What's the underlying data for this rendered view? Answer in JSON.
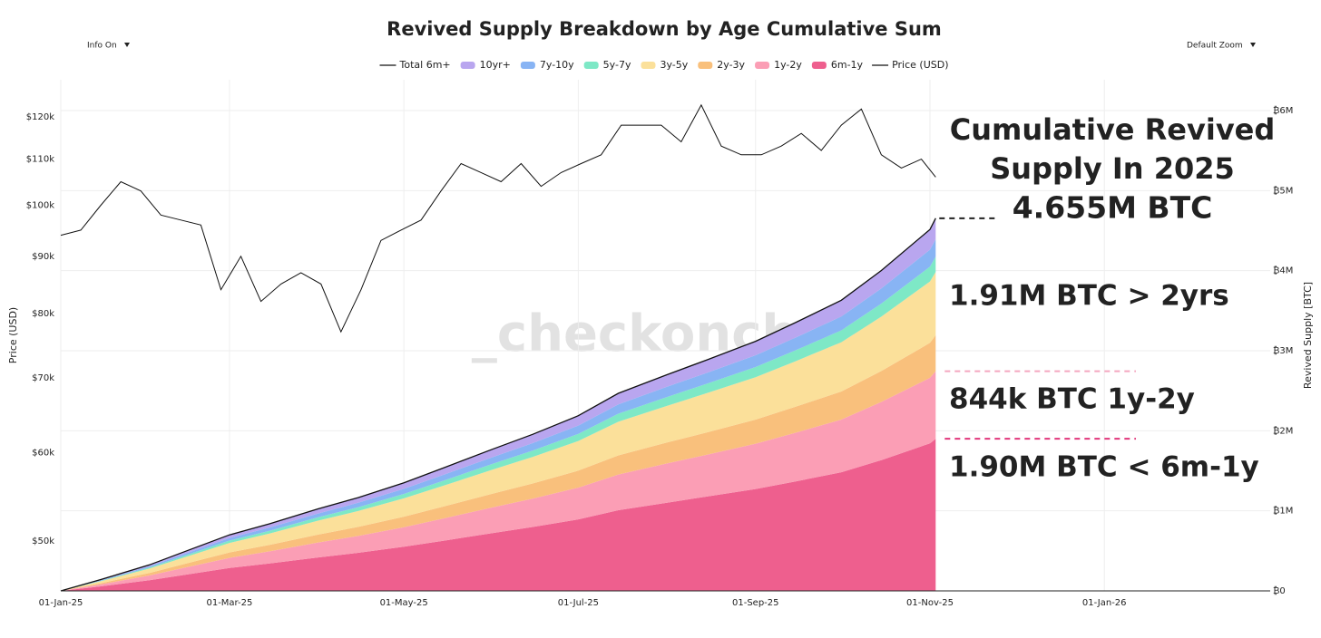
{
  "chart_data": {
    "type": "area",
    "title": "Revived Supply Breakdown by Age Cumulative Sum",
    "controls": {
      "info": "Info On",
      "zoom": "Default Zoom"
    },
    "watermark": "_checkonchain",
    "ylabel": "Price (USD)",
    "y2label": "Revived Supply [BTC]",
    "stacked": true,
    "ylog": true,
    "grid": true,
    "legend": "top",
    "xlim": [
      "2025-01-01",
      "2026-02-28"
    ],
    "xticks": [
      {
        "value": "2025-01-01",
        "label": "01-Jan-25"
      },
      {
        "value": "2025-03-01",
        "label": "01-Mar-25"
      },
      {
        "value": "2025-05-01",
        "label": "01-May-25"
      },
      {
        "value": "2025-07-01",
        "label": "01-Jul-25"
      },
      {
        "value": "2025-09-01",
        "label": "01-Sep-25"
      },
      {
        "value": "2025-11-01",
        "label": "01-Nov-25"
      },
      {
        "value": "2026-01-01",
        "label": "01-Jan-26"
      }
    ],
    "ylim": [
      45100,
      129600
    ],
    "yticks": [
      {
        "value": 50000,
        "label": "$50k"
      },
      {
        "value": 60000,
        "label": "$60k"
      },
      {
        "value": 70000,
        "label": "$70k"
      },
      {
        "value": 80000,
        "label": "$80k"
      },
      {
        "value": 90000,
        "label": "$90k"
      },
      {
        "value": 100000,
        "label": "$100k"
      },
      {
        "value": 110000,
        "label": "$110k"
      },
      {
        "value": 120000,
        "label": "$120k"
      }
    ],
    "y2lim": [
      0,
      6385000
    ],
    "y2ticks": [
      {
        "value": 0,
        "label": "₿0"
      },
      {
        "value": 1000000,
        "label": "₿1M"
      },
      {
        "value": 2000000,
        "label": "₿2M"
      },
      {
        "value": 3000000,
        "label": "₿3M"
      },
      {
        "value": 4000000,
        "label": "₿4M"
      },
      {
        "value": 5000000,
        "label": "₿5M"
      },
      {
        "value": 6000000,
        "label": "₿6M"
      }
    ],
    "x": [
      "2025-01-01",
      "2025-01-15",
      "2025-02-01",
      "2025-02-15",
      "2025-03-01",
      "2025-03-15",
      "2025-04-01",
      "2025-04-15",
      "2025-05-01",
      "2025-05-15",
      "2025-06-01",
      "2025-06-15",
      "2025-07-01",
      "2025-07-15",
      "2025-08-01",
      "2025-08-15",
      "2025-09-01",
      "2025-09-15",
      "2025-10-01",
      "2025-10-15",
      "2025-11-01",
      "2025-11-03"
    ],
    "series": [
      {
        "name": "Total 6m+",
        "type": "line",
        "axis": "y2",
        "color": "#111111",
        "values": [
          0,
          141000,
          325000,
          513000,
          700000,
          838000,
          1024000,
          1165000,
          1351000,
          1538000,
          1769000,
          1955000,
          2188000,
          2468000,
          2700000,
          2886000,
          3118000,
          3352000,
          3631000,
          4002000,
          4515000,
          4655000
        ]
      },
      {
        "name": "10yr+",
        "type": "area",
        "axis": "y2",
        "color": "#b9a6ef",
        "values": [
          0,
          8000,
          18000,
          29000,
          39000,
          47000,
          57000,
          65000,
          76000,
          86000,
          99000,
          110000,
          123000,
          138000,
          151000,
          162000,
          175000,
          188000,
          204000,
          224000,
          253000,
          261000
        ]
      },
      {
        "name": "7y-10y",
        "type": "area",
        "axis": "y2",
        "color": "#88b4f4",
        "values": [
          0,
          7000,
          15000,
          24000,
          33000,
          40000,
          48000,
          55000,
          64000,
          73000,
          84000,
          92000,
          103000,
          117000,
          128000,
          136000,
          147000,
          158000,
          172000,
          189000,
          213000,
          220000
        ]
      },
      {
        "name": "5y-7y",
        "type": "area",
        "axis": "y2",
        "color": "#7ee8c6",
        "values": [
          0,
          6000,
          13000,
          21000,
          29000,
          34000,
          42000,
          48000,
          55000,
          63000,
          72000,
          80000,
          89000,
          101000,
          110000,
          118000,
          127000,
          137000,
          148000,
          163000,
          184000,
          190000
        ]
      },
      {
        "name": "3y-5y",
        "type": "area",
        "axis": "y2",
        "color": "#fbe09a",
        "values": [
          0,
          24000,
          55000,
          87000,
          119000,
          142000,
          174000,
          198000,
          229000,
          261000,
          300000,
          332000,
          371000,
          419000,
          458000,
          490000,
          529000,
          569000,
          616000,
          679000,
          766000,
          790000
        ]
      },
      {
        "name": "2y-3y",
        "type": "area",
        "axis": "y2",
        "color": "#f9c07c",
        "values": [
          0,
          14000,
          32000,
          50000,
          68000,
          81000,
          99000,
          113000,
          131000,
          149000,
          171000,
          189000,
          212000,
          239000,
          261000,
          279000,
          302000,
          324000,
          351000,
          387000,
          437000,
          450000
        ]
      },
      {
        "name": "1y-2y",
        "type": "area",
        "axis": "y2",
        "color": "#fb9eb5",
        "values": [
          0,
          25000,
          59000,
          93000,
          127000,
          152000,
          186000,
          211000,
          245000,
          279000,
          321000,
          354000,
          397000,
          447000,
          490000,
          523000,
          565000,
          608000,
          658000,
          726000,
          819000,
          844000
        ]
      },
      {
        "name": "6m-1y",
        "type": "area",
        "axis": "y2",
        "color": "#ee5f8e",
        "values": [
          0,
          57000,
          133000,
          209000,
          285000,
          342000,
          418000,
          475000,
          551000,
          627000,
          722000,
          798000,
          893000,
          1007000,
          1102000,
          1178000,
          1273000,
          1368000,
          1482000,
          1634000,
          1843000,
          1900000
        ]
      },
      {
        "name": "Price (USD)",
        "type": "line",
        "axis": "y",
        "color": "#111111",
        "x": [
          "2025-01-01",
          "2025-01-08",
          "2025-01-15",
          "2025-01-22",
          "2025-01-29",
          "2025-02-05",
          "2025-02-12",
          "2025-02-19",
          "2025-02-26",
          "2025-03-05",
          "2025-03-12",
          "2025-03-19",
          "2025-03-26",
          "2025-04-02",
          "2025-04-09",
          "2025-04-16",
          "2025-04-23",
          "2025-04-30",
          "2025-05-07",
          "2025-05-14",
          "2025-05-21",
          "2025-05-28",
          "2025-06-04",
          "2025-06-11",
          "2025-06-18",
          "2025-06-25",
          "2025-07-02",
          "2025-07-09",
          "2025-07-16",
          "2025-07-23",
          "2025-07-30",
          "2025-08-06",
          "2025-08-13",
          "2025-08-20",
          "2025-08-27",
          "2025-09-03",
          "2025-09-10",
          "2025-09-17",
          "2025-09-24",
          "2025-10-01",
          "2025-10-08",
          "2025-10-15",
          "2025-10-22",
          "2025-10-29",
          "2025-11-03"
        ],
        "values": [
          94000,
          95000,
          100000,
          105000,
          103000,
          98000,
          97000,
          96000,
          84000,
          90000,
          82000,
          85000,
          87000,
          85000,
          77000,
          84000,
          93000,
          95000,
          97000,
          103000,
          109000,
          107000,
          105000,
          109000,
          104000,
          107000,
          109000,
          111000,
          118000,
          118000,
          118000,
          114000,
          123000,
          113000,
          111000,
          111000,
          113000,
          116000,
          112000,
          118000,
          122000,
          111000,
          108000,
          110000,
          106000
        ]
      }
    ],
    "annotations": [
      {
        "lines": [
          "Cumulative Revived",
          "Supply In 2025",
          "4.655M BTC"
        ],
        "color": "#222222"
      },
      {
        "text": "1.91M BTC > 2yrs",
        "color": "#f28c1c"
      },
      {
        "text": "844k BTC 1y-2y",
        "color": "#f4a6c0"
      },
      {
        "text": "1.90M BTC < 6m-1y",
        "color": "#e0357a"
      }
    ]
  }
}
